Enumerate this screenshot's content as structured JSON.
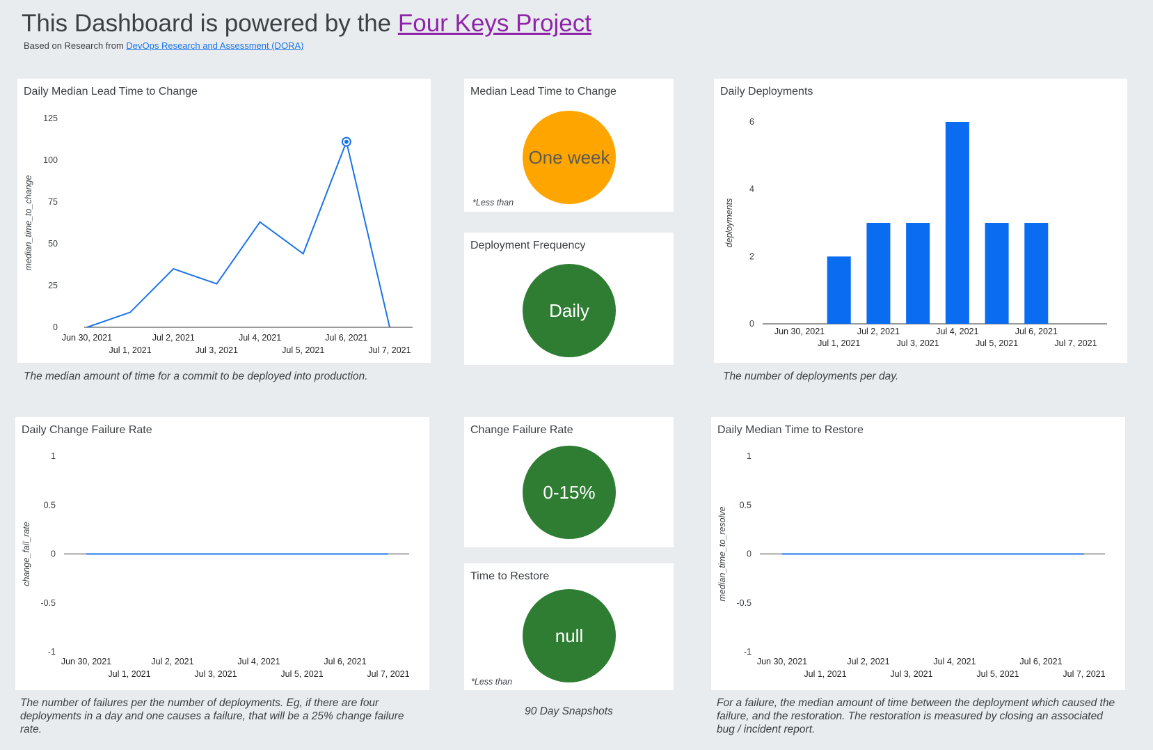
{
  "header": {
    "title_prefix": "This Dashboard is powered by the ",
    "title_link": "Four Keys Project",
    "subtitle_prefix": "Based on Research from ",
    "subtitle_link": "DevOps Research and Assessment (DORA)"
  },
  "colors": {
    "line": "#1a73e8",
    "bar": "#0a6cf0",
    "orange": "#ffa500",
    "green": "#2e7d32",
    "purple_link": "#8e24aa",
    "blue_link": "#1a73e8"
  },
  "cards": {
    "lead_time_chart": {
      "title": "Daily Median Lead Time to Change",
      "caption": "The median amount of time for a commit to be deployed into production."
    },
    "lead_time_kpi": {
      "title": "Median Lead Time to Change",
      "value": "One week",
      "note": "*Less than"
    },
    "deploy_freq_kpi": {
      "title": "Deployment Frequency",
      "value": "Daily"
    },
    "deployments_chart": {
      "title": "Daily Deployments",
      "caption": "The number of deployments per day."
    },
    "cfr_chart": {
      "title": "Daily Change Failure Rate",
      "caption": "The number of failures per the number of deployments. Eg, if there are four deployments in a day and one causes a failure, that will be a 25% change failure rate."
    },
    "cfr_kpi": {
      "title": "Change Failure Rate",
      "value": "0-15%"
    },
    "restore_kpi": {
      "title": "Time to Restore",
      "value": "null",
      "note": "*Less than",
      "footer": "90 Day Snapshots"
    },
    "restore_chart": {
      "title": "Daily Median Time to Restore",
      "caption": "For a failure, the median amount of time between the deployment which caused the failure, and the restoration. The restoration is measured by closing an associated bug / incident report."
    }
  },
  "chart_data": [
    {
      "id": "lead_time",
      "type": "line",
      "ylabel": "median_time_to_change",
      "x": [
        "Jun 30, 2021",
        "Jul 1, 2021",
        "Jul 2, 2021",
        "Jul 3, 2021",
        "Jul 4, 2021",
        "Jul 5, 2021",
        "Jul 6, 2021",
        "Jul 7, 2021"
      ],
      "values": [
        0,
        9,
        35,
        26,
        63,
        44,
        111,
        0
      ],
      "yticks": [
        0,
        25,
        50,
        75,
        100,
        125
      ],
      "ylim": [
        0,
        125
      ],
      "highlight_index": 6
    },
    {
      "id": "deployments",
      "type": "bar",
      "ylabel": "deployments",
      "categories": [
        "Jun 30, 2021",
        "Jul 1, 2021",
        "Jul 2, 2021",
        "Jul 3, 2021",
        "Jul 4, 2021",
        "Jul 5, 2021",
        "Jul 6, 2021",
        "Jul 7, 2021"
      ],
      "values": [
        0,
        2,
        3,
        3,
        6,
        3,
        3,
        0
      ],
      "yticks": [
        0,
        2,
        4,
        6
      ],
      "ylim": [
        0,
        6
      ]
    },
    {
      "id": "cfr",
      "type": "line",
      "ylabel": "change_fail_rate",
      "x": [
        "Jun 30, 2021",
        "Jul 1, 2021",
        "Jul 2, 2021",
        "Jul 3, 2021",
        "Jul 4, 2021",
        "Jul 5, 2021",
        "Jul 6, 2021",
        "Jul 7, 2021"
      ],
      "values": [
        0,
        0,
        0,
        0,
        0,
        0,
        0,
        0
      ],
      "yticks": [
        -1,
        -0.5,
        0,
        0.5,
        1
      ],
      "ylim": [
        -1,
        1
      ]
    },
    {
      "id": "restore",
      "type": "line",
      "ylabel": "median_time_to_resolve",
      "x": [
        "Jun 30, 2021",
        "Jul 1, 2021",
        "Jul 2, 2021",
        "Jul 3, 2021",
        "Jul 4, 2021",
        "Jul 5, 2021",
        "Jul 6, 2021",
        "Jul 7, 2021"
      ],
      "values": [
        0,
        0,
        0,
        0,
        0,
        0,
        0,
        0
      ],
      "yticks": [
        -1,
        -0.5,
        0,
        0.5,
        1
      ],
      "ylim": [
        -1,
        1
      ]
    }
  ]
}
